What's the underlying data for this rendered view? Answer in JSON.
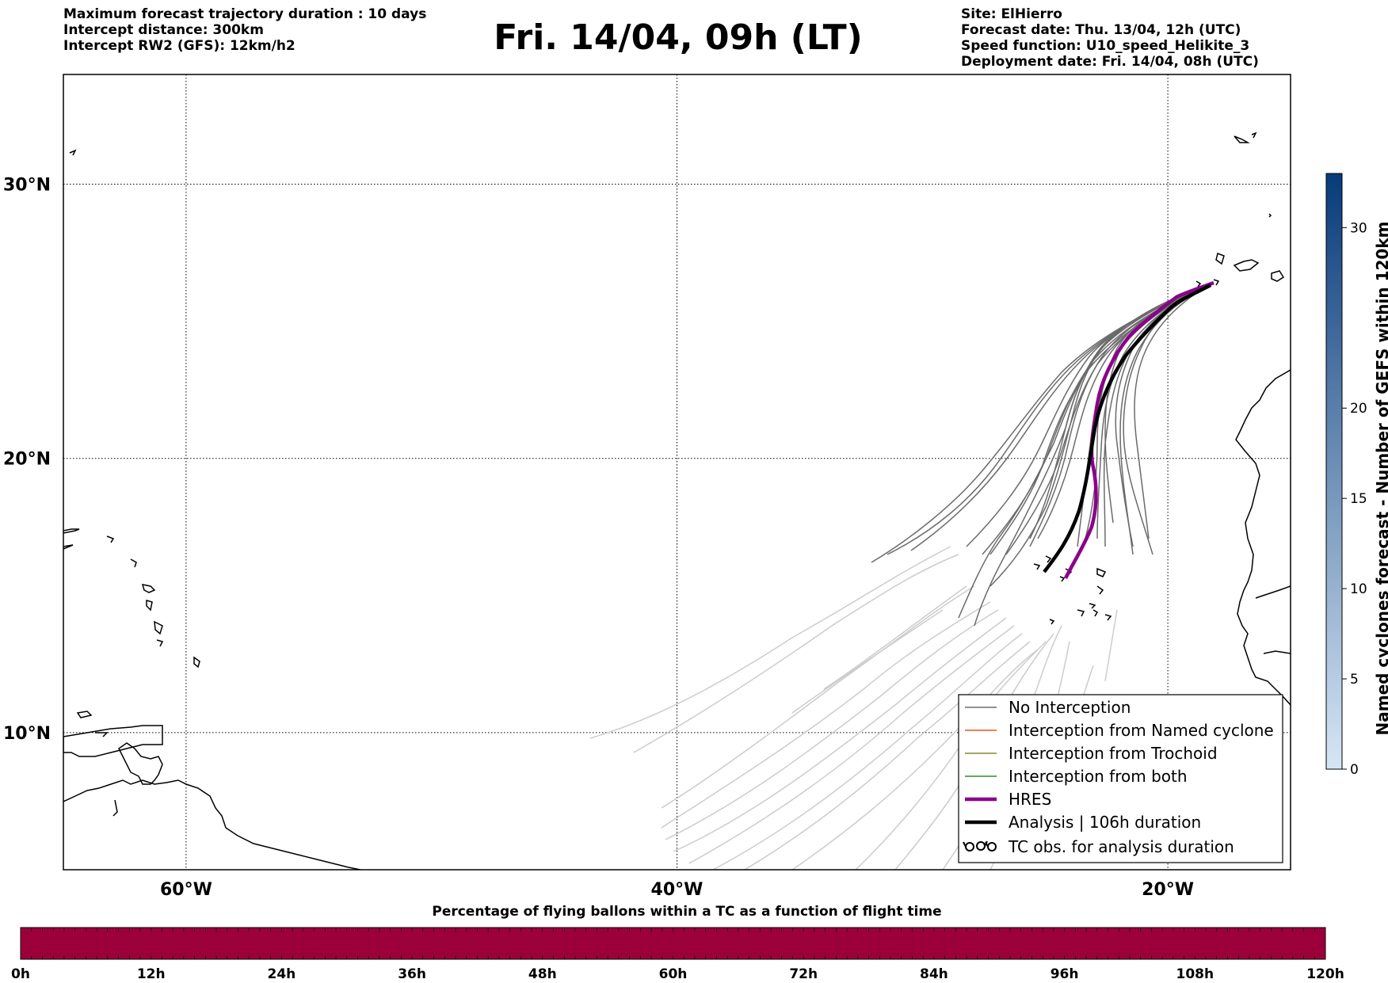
{
  "header_left": [
    "Maximum forecast trajectory duration : 10 days",
    "Intercept distance: 300km",
    "Intercept RW2 (GFS):  12km/h2"
  ],
  "title": "Fri. 14/04, 09h (LT)",
  "header_right": [
    "Site: ElHierro",
    "Forecast date: Thu. 13/04, 12h (UTC)",
    "Speed function: U10_speed_Helikite_3",
    "Deployment date: Fri. 14/04, 08h (UTC)"
  ],
  "map": {
    "lon_range": [
      -65,
      -15
    ],
    "lat_range": [
      5,
      34
    ],
    "lat_ticks": [
      {
        "value": 30,
        "label": "30°N"
      },
      {
        "value": 20,
        "label": "20°N"
      },
      {
        "value": 10,
        "label": "10°N"
      }
    ],
    "lon_ticks": [
      {
        "value": -60,
        "label": "60°W"
      },
      {
        "value": -40,
        "label": "40°W"
      },
      {
        "value": -20,
        "label": "20°W"
      }
    ],
    "grid": "dotted",
    "colors": {
      "no_interception": "#6b6b6b",
      "light_trajectory": "#cccccc",
      "named_cyclone": "#e8551b",
      "trochoid": "#8a8a2a",
      "both": "#2e8b2e",
      "hres": "#8b008b",
      "analysis": "#000000",
      "coast": "#000000"
    }
  },
  "legend": {
    "position": "bottom-right",
    "items": [
      {
        "label": "No Interception",
        "style": "no_interception"
      },
      {
        "label": "Interception from Named cyclone",
        "style": "named_cyclone"
      },
      {
        "label": "Interception from Trochoid",
        "style": "trochoid"
      },
      {
        "label": "Interception from both",
        "style": "both"
      },
      {
        "label": "HRES",
        "style": "hres"
      },
      {
        "label": "Analysis | 106h duration",
        "style": "analysis"
      },
      {
        "label": "TC obs. for analysis duration",
        "style": "tc_obs"
      }
    ]
  },
  "colorbar": {
    "label": "Named cyclones forecast - Number of GEFS within 120km",
    "min": 0,
    "max": 33,
    "ticks": [
      0,
      5,
      10,
      15,
      20,
      30
    ],
    "color_low": "#d6e6f5",
    "color_high": "#083b7a"
  },
  "percentage_bar": {
    "title": "Percentage of flying ballons within a TC as a function of flight time",
    "color": "#9c003a",
    "ticks": [
      "0h",
      "12h",
      "24h",
      "36h",
      "48h",
      "60h",
      "72h",
      "84h",
      "96h",
      "108h",
      "120h"
    ]
  }
}
